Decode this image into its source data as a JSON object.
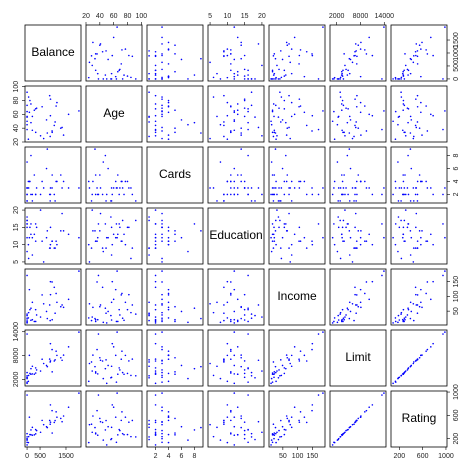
{
  "chart_data": {
    "type": "scatter-matrix",
    "color": "#0000ff",
    "variables": [
      {
        "name": "Balance",
        "lim": [
          -80,
          2079
        ],
        "xticks": [
          0,
          500,
          1500
        ],
        "yticks": [
          0,
          500,
          1000,
          1500
        ],
        "values": [
          333,
          903,
          580,
          964,
          331,
          1151,
          203,
          872,
          279,
          1350,
          1407,
          0,
          204,
          1081,
          148,
          0,
          0,
          368,
          891,
          1048,
          89,
          968,
          0,
          1999,
          50,
          1300,
          0,
          750,
          1600,
          0,
          520,
          60,
          150,
          1120,
          780,
          900,
          0,
          640,
          0,
          110
        ]
      },
      {
        "name": "Age",
        "lim": [
          20,
          101
        ],
        "xticks": [
          20,
          40,
          60,
          80,
          100
        ],
        "yticks": [
          20,
          40,
          60,
          80,
          100
        ],
        "values": [
          34,
          82,
          71,
          36,
          68,
          77,
          37,
          87,
          66,
          41,
          30,
          64,
          57,
          49,
          75,
          57,
          73,
          69,
          28,
          44,
          63,
          34,
          38,
          65,
          24,
          40,
          56,
          52,
          60,
          45,
          29,
          85,
          48,
          72,
          33,
          58,
          92,
          25,
          50,
          80
        ]
      },
      {
        "name": "Cards",
        "lim": [
          0.68,
          9.32
        ],
        "xticks": [
          2,
          4,
          6,
          8
        ],
        "yticks": [
          2,
          4,
          6,
          8
        ],
        "values": [
          2,
          3,
          4,
          3,
          2,
          4,
          2,
          2,
          5,
          3,
          4,
          3,
          1,
          1,
          2,
          3,
          3,
          3,
          1,
          2,
          4,
          5,
          2,
          3,
          4,
          5,
          1,
          6,
          3,
          7,
          2,
          3,
          8,
          4,
          9,
          2,
          1,
          3,
          2,
          4
        ]
      },
      {
        "name": "Education",
        "lim": [
          4.4,
          20.6
        ],
        "xticks": [
          5,
          10,
          15,
          20
        ],
        "yticks": [
          5,
          10,
          15,
          20
        ],
        "values": [
          11,
          15,
          11,
          11,
          16,
          10,
          12,
          9,
          13,
          19,
          14,
          16,
          7,
          9,
          13,
          15,
          17,
          15,
          9,
          9,
          12,
          11,
          16,
          12,
          10,
          14,
          18,
          12,
          13,
          8,
          20,
          6,
          16,
          11,
          14,
          10,
          17,
          5,
          12,
          15
        ]
      },
      {
        "name": "Income",
        "lim": [
          3,
          193
        ],
        "xticks": [
          50,
          100,
          150
        ],
        "yticks": [
          50,
          100,
          150
        ],
        "values": [
          15,
          106,
          105,
          149,
          55,
          80,
          21,
          71,
          15,
          71,
          63,
          15,
          80,
          43,
          19,
          20,
          26,
          37,
          18,
          131,
          123,
          21,
          171,
          186,
          27,
          65,
          35,
          49,
          90,
          12,
          30,
          45,
          60,
          110,
          25,
          150,
          40,
          75,
          10,
          55
        ]
      },
      {
        "name": "Limit",
        "lim": [
          333,
          14435
        ],
        "xticks": [
          2000,
          8000,
          14000
        ],
        "yticks": [
          2000,
          8000,
          14000
        ],
        "values": [
          3600,
          6650,
          7075,
          9504,
          4897,
          8047,
          3388,
          7114,
          3300,
          6819,
          8117,
          1311,
          5308,
          6922,
          3291,
          2525,
          3714,
          4378,
          6384,
          6626,
          8049,
          3895,
          13414,
          13913,
          1501,
          7450,
          2400,
          5500,
          10200,
          2200,
          4100,
          3000,
          4700,
          9100,
          5200,
          11000,
          2900,
          6000,
          1000,
          3500
        ]
      },
      {
        "name": "Rating",
        "lim": [
          57,
          1018
        ],
        "xticks": [
          200,
          600,
          1000
        ],
        "yticks": [
          200,
          600,
          1000
        ],
        "values": [
          283,
          483,
          514,
          681,
          357,
          569,
          259,
          512,
          266,
          491,
          589,
          138,
          394,
          511,
          269,
          200,
          286,
          339,
          448,
          479,
          569,
          297,
          949,
          982,
          133,
          548,
          185,
          405,
          740,
          176,
          310,
          235,
          350,
          660,
          390,
          780,
          230,
          440,
          93,
          270
        ]
      }
    ]
  }
}
